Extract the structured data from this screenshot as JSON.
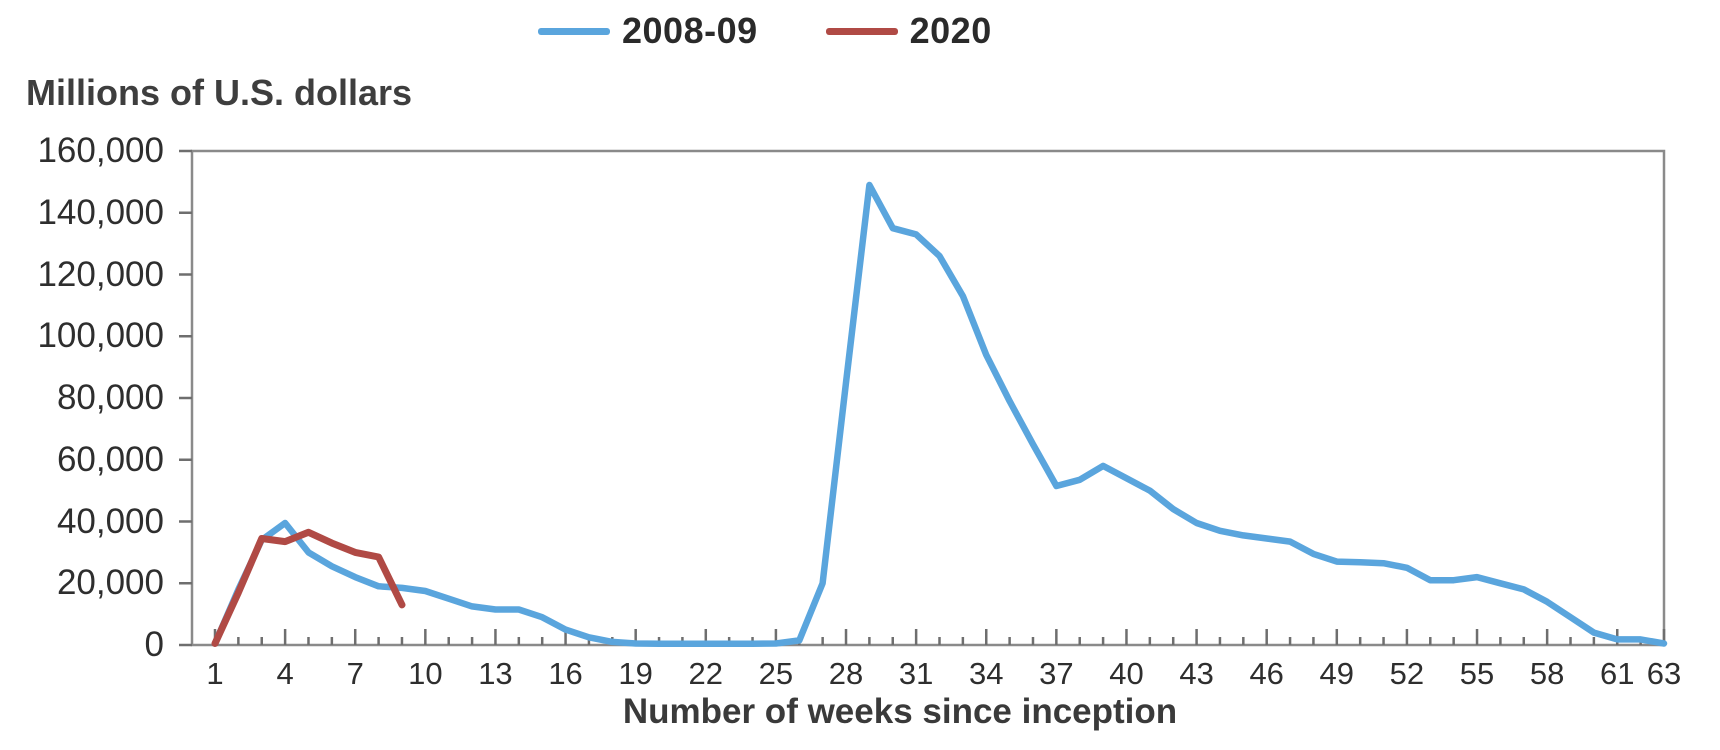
{
  "legend": {
    "items": [
      {
        "label": "2008-09",
        "color": "#5aa5dd"
      },
      {
        "label": "2020",
        "color": "#b04a45"
      }
    ]
  },
  "chart_data": {
    "type": "line",
    "y_axis_title": "Millions of U.S. dollars",
    "xlabel": "Number of weeks since inception",
    "x_unit": "weeks since inception",
    "xlim": [
      1,
      63
    ],
    "ylim": [
      0,
      160000
    ],
    "grid": false,
    "legend_position": "top-center",
    "y_ticks": [
      0,
      20000,
      40000,
      60000,
      80000,
      100000,
      120000,
      140000,
      160000
    ],
    "y_tick_labels": [
      "0",
      "20,000",
      "40,000",
      "60,000",
      "80,000",
      "100,000",
      "120,000",
      "140,000",
      "160,000"
    ],
    "x_major_tick_labels": [
      "1",
      "4",
      "7",
      "10",
      "13",
      "16",
      "19",
      "22",
      "25",
      "28",
      "31",
      "34",
      "37",
      "40",
      "43",
      "46",
      "49",
      "52",
      "55",
      "58",
      "61",
      "63"
    ],
    "series": [
      {
        "name": "2008-09",
        "color": "#5aa5dd",
        "x_start_week": 1,
        "values": [
          500,
          18000,
          34000,
          39500,
          30000,
          25500,
          22000,
          19000,
          18500,
          17500,
          15000,
          12500,
          11500,
          11500,
          9000,
          5000,
          2500,
          1000,
          500,
          400,
          400,
          400,
          400,
          400,
          500,
          1500,
          20000,
          85000,
          149000,
          135000,
          133000,
          126000,
          113000,
          94000,
          79000,
          65000,
          51500,
          53500,
          58000,
          54000,
          50000,
          44000,
          39500,
          37000,
          35500,
          34500,
          33500,
          29500,
          27000,
          26800,
          26500,
          25000,
          21000,
          21000,
          22000,
          20000,
          18000,
          14000,
          9000,
          4000,
          1800,
          1800,
          500
        ]
      },
      {
        "name": "2020",
        "color": "#b04a45",
        "x_start_week": 1,
        "values": [
          500,
          17000,
          34500,
          33500,
          36500,
          33000,
          30000,
          28500,
          13000
        ]
      }
    ]
  }
}
